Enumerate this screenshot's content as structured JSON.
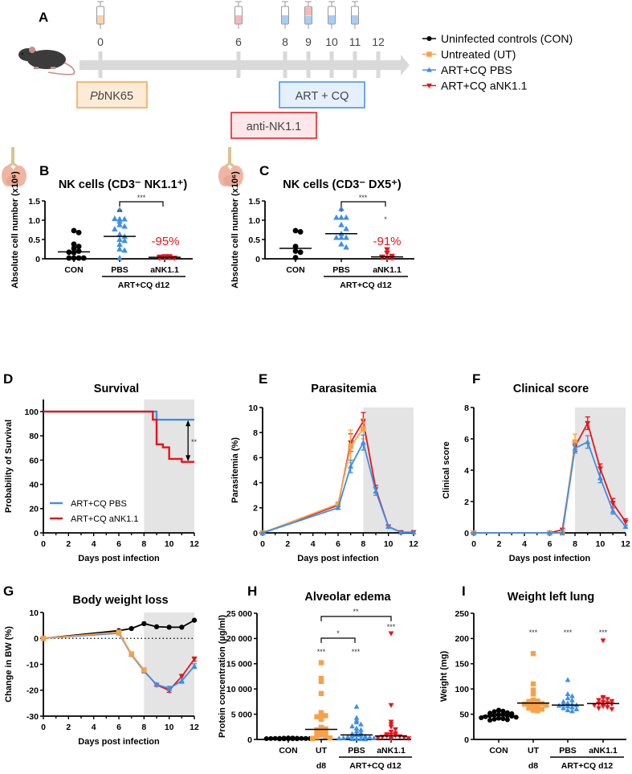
{
  "colors": {
    "con": "#000000",
    "ut": "#f7a148",
    "pbs": "#3d8fe6",
    "ank": "#e8141a",
    "shade": "#e4e4e4",
    "timeline": "#d9d9d9"
  },
  "panel_a": {
    "letter": "A",
    "days": [
      "0",
      "6",
      "8",
      "9",
      "10",
      "11",
      "12"
    ],
    "syringes": [
      {
        "day": "0",
        "fill": [
          "orange"
        ]
      },
      {
        "day": "6",
        "fill": [
          "pink"
        ]
      },
      {
        "day": "8",
        "fill": [
          "blue"
        ]
      },
      {
        "day": "9",
        "fill": [
          "pink",
          "blue"
        ]
      },
      {
        "day": "10",
        "fill": [
          "blue"
        ]
      },
      {
        "day": "11",
        "fill": [
          "blue"
        ]
      }
    ],
    "boxes": {
      "infection_italic": "Pb",
      "infection_rest": "NK65",
      "treatment": "ART + CQ",
      "depletion": "anti-NK1.1"
    },
    "icons": [
      "mouse-icon",
      "syringe-icon",
      "lung-icon"
    ]
  },
  "legend": {
    "items": [
      {
        "label": "Uninfected controls (CON)",
        "marker": "circle",
        "color": "#000000"
      },
      {
        "label": "Untreated (UT)",
        "marker": "square",
        "color": "#f7a148"
      },
      {
        "label": "ART+CQ PBS",
        "marker": "triangle-up",
        "color": "#3d8fe6"
      },
      {
        "label": "ART+CQ aNK1.1",
        "marker": "triangle-down",
        "color": "#e8141a"
      }
    ]
  },
  "chart_data": [
    {
      "id": "B",
      "type": "scatter",
      "title": "NK cells (CD3⁻ NK1.1⁺)",
      "ylabel": "Absolute cell number (x10⁶)",
      "ylim": [
        0,
        1.5
      ],
      "yticks": [
        "0",
        "0.5",
        "1.0",
        "1.5"
      ],
      "categories": [
        "CON",
        "PBS",
        "aNK1.1"
      ],
      "group_label": "ART+CQ d12",
      "series": [
        {
          "name": "CON",
          "marker": "circle",
          "color": "#000000",
          "median": 0.18,
          "values": [
            0.73,
            0.68,
            0.38,
            0.32,
            0.27,
            0.2,
            0.17,
            0.16,
            0.02,
            0.02,
            0.02,
            0.02
          ]
        },
        {
          "name": "PBS",
          "marker": "triangle-up",
          "color": "#3d8fe6",
          "median": 0.58,
          "values": [
            1.27,
            1.03,
            1.03,
            1.04,
            0.97,
            0.88,
            0.84,
            0.77,
            0.63,
            0.58,
            0.5,
            0.47,
            0.37,
            0.25,
            0.22,
            0.02
          ]
        },
        {
          "name": "aNK1.1",
          "marker": "triangle-down",
          "color": "#e8141a",
          "median": 0.04,
          "values": [
            0.06,
            0.06,
            0.05,
            0.04,
            0.03,
            0.02,
            0.02
          ]
        }
      ],
      "annotations": {
        "stars_pbs": "**",
        "bracket": "***",
        "percent": "-95%"
      }
    },
    {
      "id": "C",
      "type": "scatter",
      "title": "NK cells (CD3⁻ DX5⁺)",
      "ylabel": "Absolute cell number (x10⁶)",
      "ylim": [
        0,
        1.5
      ],
      "yticks": [
        "0",
        "0.5",
        "1.0",
        "1.5"
      ],
      "categories": [
        "CON",
        "PBS",
        "aNK1.1"
      ],
      "group_label": "ART+CQ d12",
      "series": [
        {
          "name": "CON",
          "marker": "circle",
          "color": "#000000",
          "median": 0.27,
          "values": [
            0.73,
            0.7,
            0.32,
            0.2,
            0.17,
            0.03
          ]
        },
        {
          "name": "PBS",
          "marker": "triangle-up",
          "color": "#3d8fe6",
          "median": 0.65,
          "values": [
            1.3,
            1.07,
            1.07,
            1.07,
            0.88,
            0.78,
            0.65,
            0.55,
            0.55,
            0.55,
            0.38,
            0.3
          ]
        },
        {
          "name": "aNK1.1",
          "marker": "triangle-down",
          "color": "#e8141a",
          "median": 0.05,
          "values": [
            0.24,
            0.15,
            0.07,
            0.05,
            0.02,
            0.02,
            0.04
          ]
        }
      ],
      "annotations": {
        "stars_pbs": "*",
        "stars_ank": "*",
        "bracket": "***",
        "percent": "-91%"
      }
    },
    {
      "id": "D",
      "type": "line",
      "step": true,
      "title": "Survival",
      "xlabel": "Days post infection",
      "ylabel": "Probability of Survival",
      "xlim": [
        0,
        12
      ],
      "ylim": [
        0,
        110
      ],
      "xticks": [
        "0",
        "2",
        "4",
        "6",
        "8",
        "10",
        "12"
      ],
      "yticks": [
        "0",
        "20",
        "40",
        "60",
        "80",
        "100"
      ],
      "shade": [
        8,
        12
      ],
      "series": [
        {
          "name": "ART+CQ PBS",
          "color": "#3d8fe6",
          "x": [
            0,
            9,
            9,
            12
          ],
          "y": [
            100,
            100,
            93.3,
            93.3
          ]
        },
        {
          "name": "ART+CQ aNK1.1",
          "color": "#e8141a",
          "x": [
            0,
            8.7,
            8.7,
            9,
            9,
            9.5,
            9.5,
            10,
            10,
            11,
            11,
            12
          ],
          "y": [
            100,
            100,
            93.3,
            93.3,
            73,
            73,
            70.5,
            70.5,
            61,
            61,
            58.5,
            58.5
          ]
        }
      ],
      "legend": [
        "ART+CQ PBS",
        "ART+CQ aNK1.1"
      ],
      "legend_position": "bottom-left",
      "annotations": {
        "stars": "**"
      }
    },
    {
      "id": "E",
      "type": "line",
      "title": "Parasitemia",
      "xlabel": "Days post infection",
      "ylabel": "Parasitemia (%)",
      "xlim": [
        0,
        12
      ],
      "ylim": [
        0,
        10
      ],
      "xticks": [
        "0",
        "2",
        "4",
        "6",
        "8",
        "10",
        "12"
      ],
      "yticks": [
        "0",
        "2",
        "4",
        "6",
        "8",
        "10"
      ],
      "shade": [
        8,
        12
      ],
      "series": [
        {
          "name": "ART+CQ aNK1.1",
          "color": "#e8141a",
          "marker": "triangle-down",
          "x": [
            0,
            6,
            7,
            8,
            9,
            10,
            11,
            12
          ],
          "y": [
            0,
            2.2,
            7.2,
            8.9,
            3.5,
            0.5,
            0.05,
            0.05
          ],
          "err": [
            0,
            0.1,
            0.7,
            0.7,
            0.3,
            0.1,
            0,
            0
          ]
        },
        {
          "name": "Untreated (UT)",
          "color": "#f7a148",
          "marker": "square",
          "x": [
            0,
            6,
            7,
            8
          ],
          "y": [
            0,
            2.3,
            6.9,
            8.3
          ],
          "err": [
            0,
            0.1,
            1.3,
            0.8
          ]
        },
        {
          "name": "ART+CQ PBS",
          "color": "#3d8fe6",
          "marker": "triangle-up",
          "x": [
            0,
            6,
            7,
            8,
            9,
            10,
            11,
            12
          ],
          "y": [
            0,
            2.0,
            5.3,
            7.2,
            3.3,
            0.5,
            0.05,
            0.05
          ],
          "err": [
            0,
            0.1,
            0.5,
            0.6,
            0.3,
            0.1,
            0,
            0
          ]
        }
      ]
    },
    {
      "id": "F",
      "type": "line",
      "title": "Clinical score",
      "xlabel": "Days post infection",
      "ylabel": "Clinical score",
      "xlim": [
        0,
        12
      ],
      "ylim": [
        0,
        8
      ],
      "xticks": [
        "0",
        "2",
        "4",
        "6",
        "8",
        "10",
        "12"
      ],
      "yticks": [
        "0",
        "2",
        "4",
        "6",
        "8"
      ],
      "shade": [
        8,
        12
      ],
      "series": [
        {
          "name": "ART+CQ aNK1.1",
          "color": "#e8141a",
          "marker": "triangle-down",
          "x": [
            0,
            6,
            7,
            8,
            9,
            10,
            11,
            12
          ],
          "y": [
            0,
            0,
            0.2,
            5.5,
            7.0,
            4.1,
            1.9,
            0.7
          ],
          "err": [
            0,
            0,
            0.1,
            0.3,
            0.4,
            0.3,
            0.3,
            0.2
          ]
        },
        {
          "name": "Untreated (UT)",
          "color": "#f7a148",
          "marker": "square",
          "x": [
            0,
            6,
            7,
            8
          ],
          "y": [
            0,
            0,
            0,
            5.8
          ],
          "err": [
            0,
            0,
            0,
            0.5
          ]
        },
        {
          "name": "ART+CQ PBS",
          "color": "#3d8fe6",
          "marker": "triangle-up",
          "x": [
            0,
            6,
            7,
            8,
            9,
            10,
            11,
            12
          ],
          "y": [
            0,
            0,
            0,
            5.4,
            5.8,
            3.5,
            1.4,
            0.4
          ],
          "err": [
            0,
            0,
            0,
            0.3,
            0.4,
            0.3,
            0.2,
            0.1
          ]
        }
      ]
    },
    {
      "id": "G",
      "type": "line",
      "title": "Body weight loss",
      "xlabel": "Days post infection",
      "ylabel": "Change in BW (%)",
      "xlim": [
        0,
        12
      ],
      "ylim": [
        -30,
        10
      ],
      "xticks": [
        "0",
        "2",
        "4",
        "6",
        "8",
        "10",
        "12"
      ],
      "yticks": [
        "-30",
        "-20",
        "-10",
        "0",
        "10"
      ],
      "shade": [
        8,
        12
      ],
      "reference_line": 0,
      "series": [
        {
          "name": "Uninfected controls (CON)",
          "color": "#000000",
          "marker": "circle",
          "x": [
            0,
            6,
            7,
            8,
            9,
            10,
            11,
            12
          ],
          "y": [
            0,
            3.0,
            3.8,
            5.7,
            4.5,
            4.3,
            4.3,
            7.0
          ],
          "err": [
            0,
            0,
            0,
            0,
            0,
            0,
            0,
            0
          ]
        },
        {
          "name": "ART+CQ aNK1.1",
          "color": "#e8141a",
          "marker": "triangle-down",
          "x": [
            0,
            6,
            7,
            8,
            9,
            10,
            11,
            12
          ],
          "y": [
            0,
            2.2,
            -6.2,
            -12.5,
            -18.0,
            -20.0,
            -14.7,
            -8.0
          ],
          "err": [
            0,
            0,
            0,
            0.5,
            0.5,
            0.8,
            0.8,
            0.8
          ]
        },
        {
          "name": "ART+CQ PBS",
          "color": "#3d8fe6",
          "marker": "triangle-up",
          "x": [
            0,
            6,
            7,
            8,
            9,
            10,
            11,
            12
          ],
          "y": [
            0,
            2.0,
            -6.3,
            -12.7,
            -17.8,
            -19.3,
            -16.4,
            -10.7
          ],
          "err": [
            0,
            0,
            0,
            0.5,
            0.5,
            0.8,
            0.9,
            0.9
          ]
        },
        {
          "name": "Untreated (UT)",
          "color": "#f7a148",
          "marker": "square",
          "x": [
            0,
            6,
            7,
            8
          ],
          "y": [
            0,
            2.4,
            -6.0,
            -12.2
          ],
          "err": [
            0,
            0,
            0,
            0
          ]
        }
      ]
    },
    {
      "id": "H",
      "type": "scatter",
      "title": "Alveolar edema",
      "ylabel": "Protein concentration (µg/ml)",
      "ylim": [
        0,
        25000
      ],
      "yticks": [
        "0",
        "5 000",
        "10 000",
        "15 000",
        "20 000",
        "25 000"
      ],
      "categories": [
        "CON",
        "UT",
        "PBS",
        "aNK1.1"
      ],
      "sublabels": [
        "",
        "d8",
        "",
        ""
      ],
      "group_label": "ART+CQ d12",
      "series": [
        {
          "name": "CON",
          "marker": "circle",
          "color": "#000000",
          "median": 200,
          "values": [
            300,
            280,
            250,
            230,
            220,
            200,
            200,
            190,
            180,
            170,
            160,
            150,
            140,
            130,
            120,
            110
          ]
        },
        {
          "name": "UT",
          "marker": "square",
          "color": "#f7a148",
          "median": 2000,
          "values": [
            15200,
            12100,
            11500,
            9100,
            5300,
            4900,
            4700,
            4500,
            4000,
            2400,
            2100,
            1900,
            1600,
            1400,
            1200,
            900,
            700,
            500,
            300,
            200
          ]
        },
        {
          "name": "PBS",
          "marker": "triangle-up",
          "color": "#3d8fe6",
          "median": 900,
          "values": [
            6500,
            4300,
            3800,
            3400,
            3000,
            2600,
            2200,
            1900,
            1600,
            1300,
            1100,
            900,
            800,
            700,
            600,
            500,
            400,
            300,
            250,
            200,
            150,
            100,
            80,
            50
          ]
        },
        {
          "name": "aNK1.1",
          "marker": "triangle-down",
          "color": "#e8141a",
          "median": 700,
          "values": [
            21000,
            6800,
            3500,
            3000,
            2500,
            2000,
            1500,
            1200,
            1000,
            900,
            800,
            700,
            600,
            500,
            400,
            300,
            200,
            100
          ]
        }
      ],
      "annotations": {
        "ut_stars": "***",
        "pbs_stars": "***",
        "ank_stars": "***",
        "bracket_ut_pbs": "*",
        "bracket_ut_ank": "**"
      }
    },
    {
      "id": "I",
      "type": "scatter",
      "title": "Weight left lung",
      "ylabel": "Weight (mg)",
      "ylim": [
        0,
        250
      ],
      "yticks": [
        "0",
        "50",
        "100",
        "150",
        "200",
        "250"
      ],
      "categories": [
        "CON",
        "UT",
        "PBS",
        "aNK1.1"
      ],
      "sublabels": [
        "",
        "d8",
        "",
        ""
      ],
      "group_label": "ART+CQ d12",
      "series": [
        {
          "name": "CON",
          "marker": "circle",
          "color": "#000000",
          "median": 47,
          "values": [
            58,
            56,
            55,
            53,
            52,
            51,
            50,
            49,
            48,
            47,
            47,
            46,
            45,
            44,
            43,
            42,
            41,
            40,
            39,
            38
          ]
        },
        {
          "name": "UT",
          "marker": "square",
          "color": "#f7a148",
          "median": 72,
          "values": [
            170,
            110,
            98,
            90,
            78,
            76,
            75,
            74,
            73,
            72,
            71,
            70,
            68,
            66,
            64,
            62,
            60,
            58,
            57
          ]
        },
        {
          "name": "PBS",
          "marker": "triangle-up",
          "color": "#3d8fe6",
          "median": 68,
          "values": [
            118,
            90,
            86,
            82,
            78,
            75,
            72,
            70,
            69,
            68,
            67,
            66,
            64,
            62,
            60,
            58,
            56
          ]
        },
        {
          "name": "aNK1.1",
          "marker": "triangle-down",
          "color": "#e8141a",
          "median": 71,
          "values": [
            196,
            84,
            82,
            80,
            78,
            76,
            74,
            72,
            71,
            70,
            68,
            66,
            64,
            62,
            60
          ]
        }
      ],
      "annotations": {
        "ut_stars": "***",
        "pbs_stars": "***",
        "ank_stars": "***"
      }
    }
  ]
}
